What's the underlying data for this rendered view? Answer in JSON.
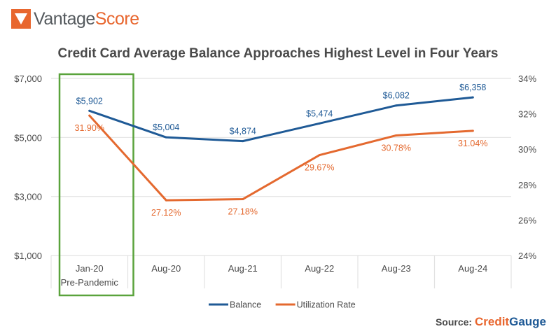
{
  "logo": {
    "part1": "Vantage",
    "part2": "Score"
  },
  "chart_data": {
    "type": "line",
    "title": "Credit Card Average Balance Approaches Highest Level in Four Years",
    "categories": [
      "Jan-20",
      "Aug-20",
      "Aug-21",
      "Aug-22",
      "Aug-23",
      "Aug-24"
    ],
    "category_sublabels": [
      "Pre-Pandemic",
      "",
      "",
      "",
      "",
      ""
    ],
    "highlight_category": "Jan-20",
    "series": [
      {
        "name": "Balance",
        "axis": "left",
        "color": "#1f5a96",
        "values": [
          5902,
          5004,
          4874,
          5474,
          6082,
          6358
        ],
        "labels": [
          "$5,902",
          "$5,004",
          "$4,874",
          "$5,474",
          "$6,082",
          "$6,358"
        ]
      },
      {
        "name": "Utilization Rate",
        "axis": "right",
        "color": "#e4692f",
        "values": [
          31.9,
          27.12,
          27.18,
          29.67,
          30.78,
          31.04
        ],
        "labels": [
          "31.90%",
          "27.12%",
          "27.18%",
          "29.67%",
          "30.78%",
          "31.04%"
        ]
      }
    ],
    "y_left": {
      "range": [
        1000,
        7000
      ],
      "ticks": [
        1000,
        3000,
        5000,
        7000
      ],
      "tick_labels": [
        "$1,000",
        "$3,000",
        "$5,000",
        "$7,000"
      ]
    },
    "y_right": {
      "range": [
        24,
        34
      ],
      "ticks": [
        24,
        26,
        28,
        30,
        32,
        34
      ],
      "tick_labels": [
        "24%",
        "26%",
        "28%",
        "30%",
        "32%",
        "34%"
      ]
    },
    "grid": true,
    "legend": "bottom-center",
    "highlight_color": "#5aa33c"
  },
  "source": {
    "prefix": "Source:",
    "brand1": "Credit",
    "brand2": "Gauge"
  }
}
